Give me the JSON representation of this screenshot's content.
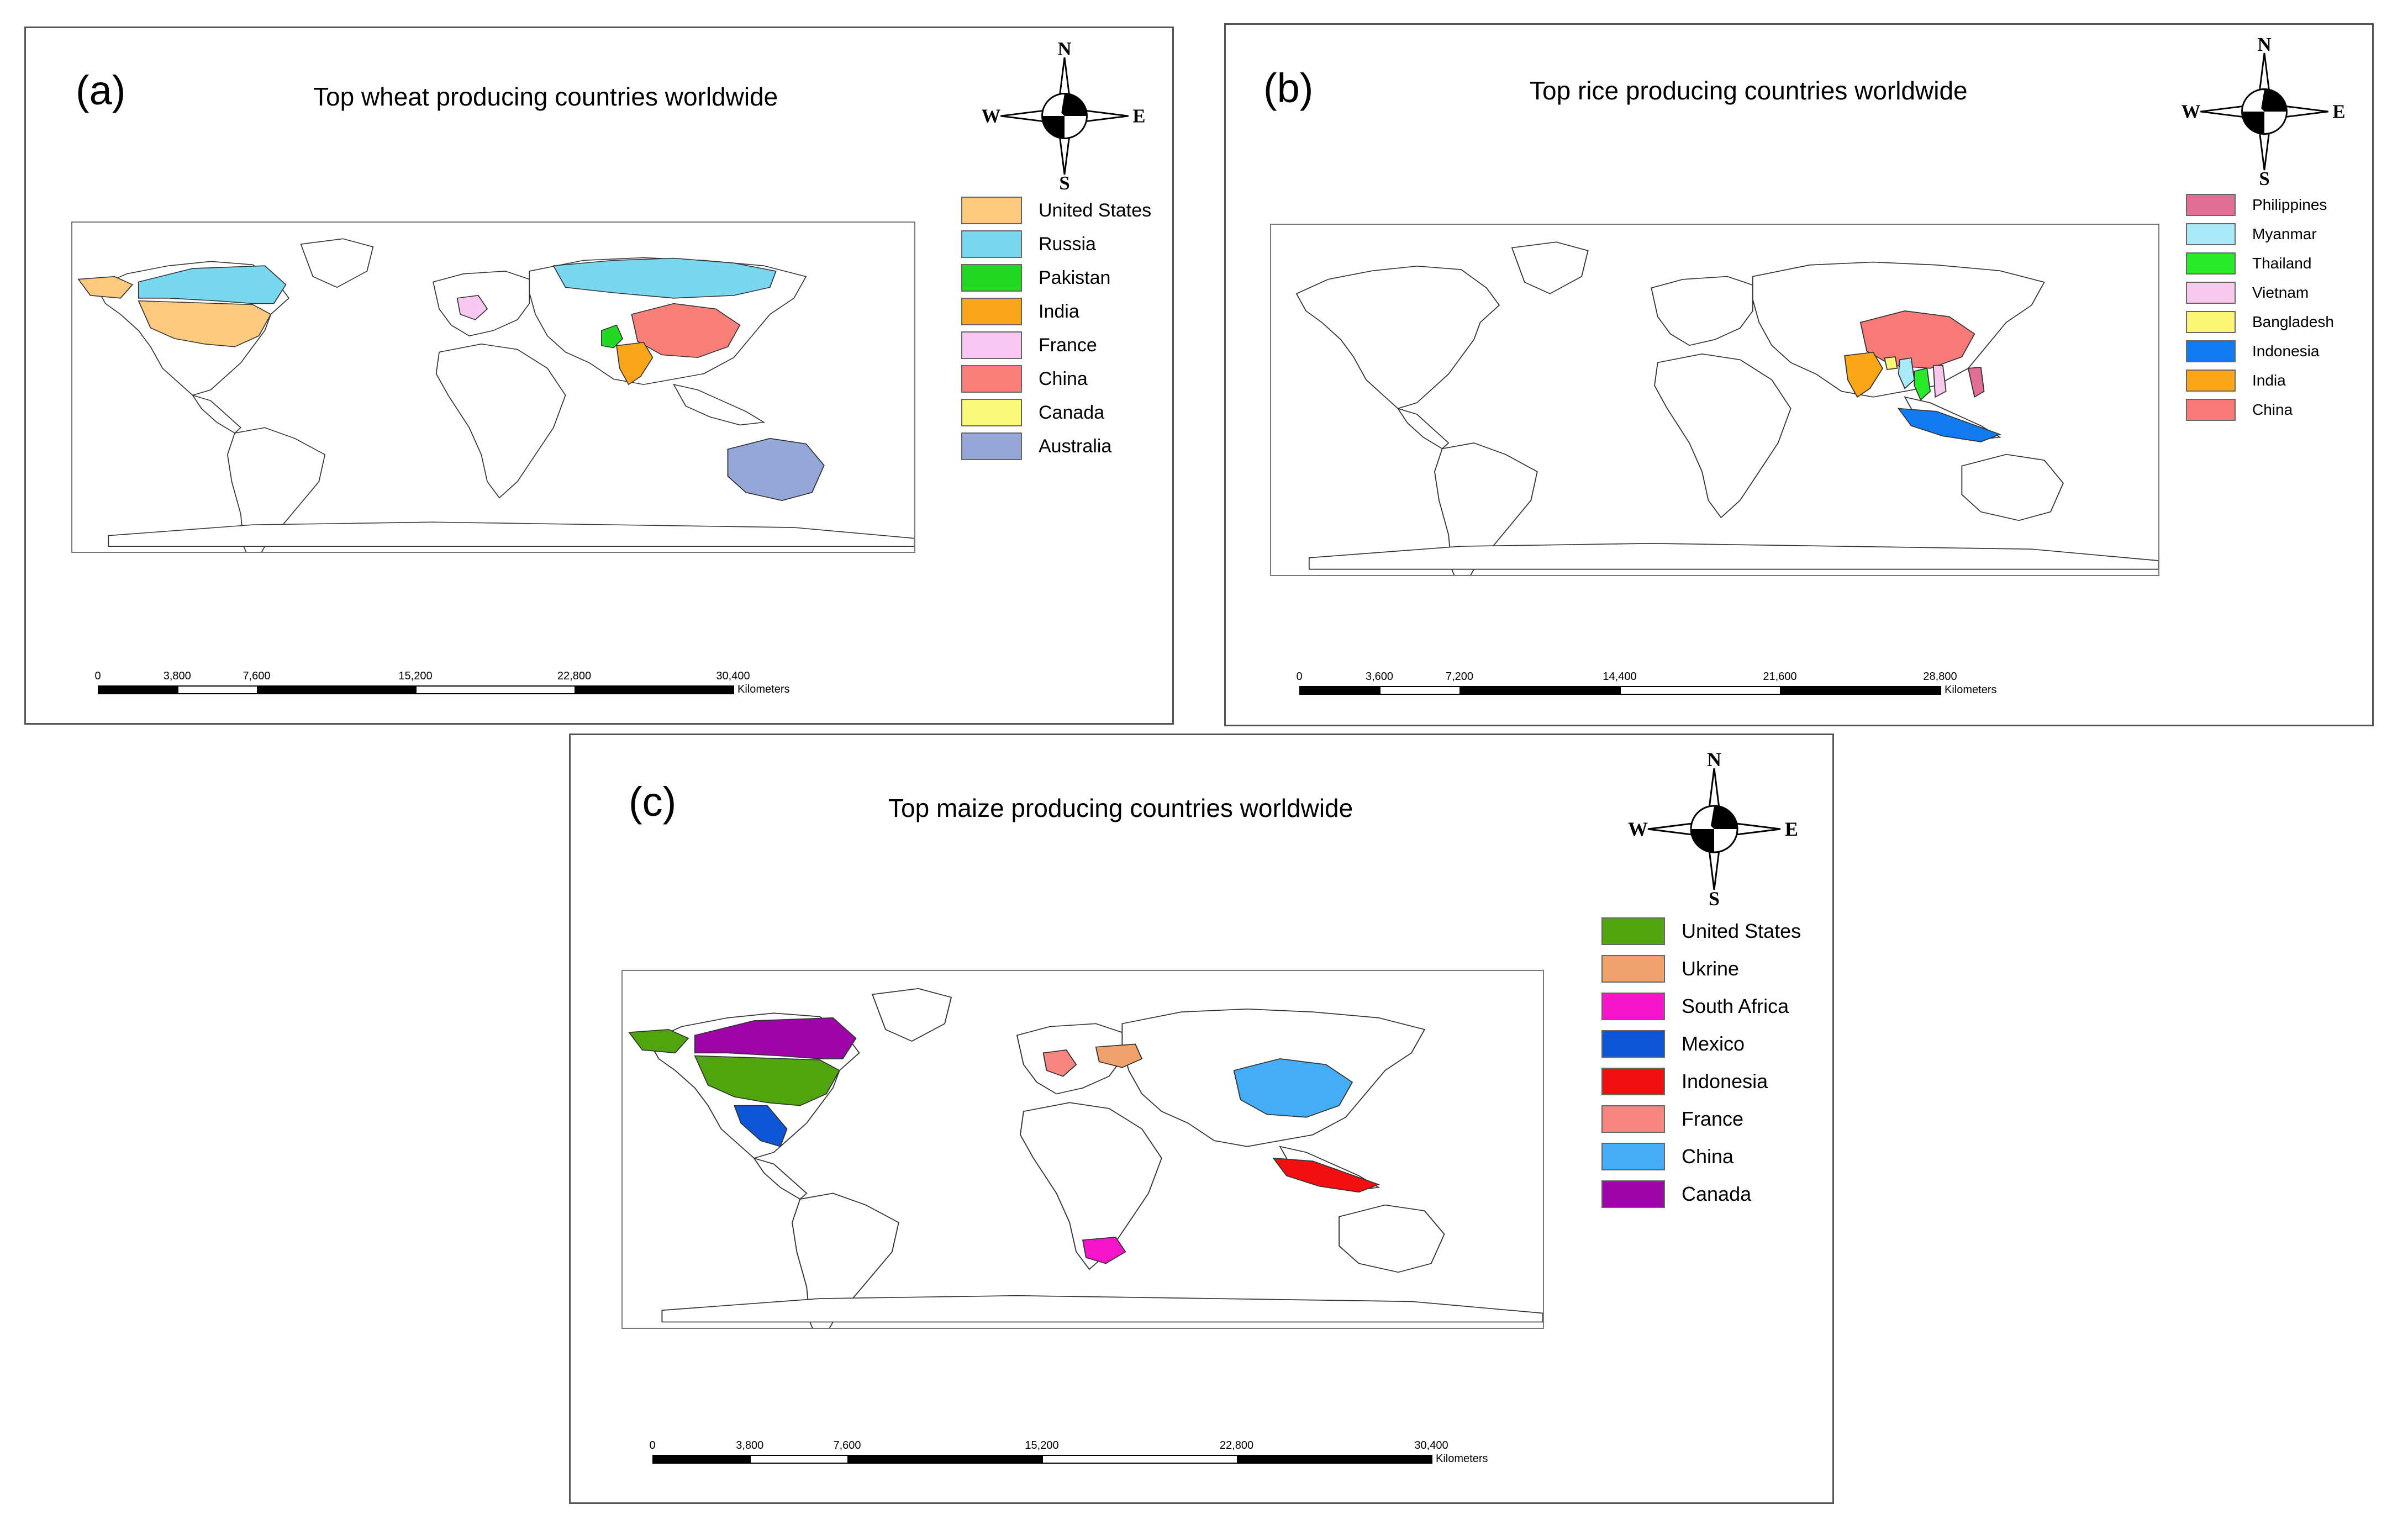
{
  "colors": {
    "land_fill": "#ffffff",
    "land_stroke": "#333333"
  },
  "panels": [
    {
      "id": "a",
      "letter": "(a)",
      "title": "Top wheat producing countries worldwide",
      "compass": {
        "n": "N",
        "s": "S",
        "e": "E",
        "w": "W"
      },
      "legend": [
        {
          "label": "United States",
          "color": "#fdc97e"
        },
        {
          "label": "Russia",
          "color": "#79d8f0"
        },
        {
          "label": "Pakistan",
          "color": "#22d822"
        },
        {
          "label": "India",
          "color": "#fba61a"
        },
        {
          "label": "France",
          "color": "#f8c7f2"
        },
        {
          "label": "China",
          "color": "#f88078"
        },
        {
          "label": "Canada",
          "color": "#fbf77a"
        },
        {
          "label": "Australia",
          "color": "#94a7d8"
        }
      ],
      "scale": {
        "ticks": [
          "0",
          "3,800",
          "7,600",
          "15,200",
          "22,800",
          "30,400"
        ],
        "units": "Kilometers"
      }
    },
    {
      "id": "b",
      "letter": "(b)",
      "title": "Top rice producing countries worldwide",
      "compass": {
        "n": "N",
        "s": "S",
        "e": "E",
        "w": "W"
      },
      "legend": [
        {
          "label": "Philippines",
          "color": "#e26d95"
        },
        {
          "label": "Myanmar",
          "color": "#aaeaf8"
        },
        {
          "label": "Thailand",
          "color": "#2ae82a"
        },
        {
          "label": "Vietnam",
          "color": "#f8c8ee"
        },
        {
          "label": "Bangladesh",
          "color": "#fbf575"
        },
        {
          "label": "Indonesia",
          "color": "#137bf0"
        },
        {
          "label": "India",
          "color": "#fba718"
        },
        {
          "label": "China",
          "color": "#f87a78"
        }
      ],
      "scale": {
        "ticks": [
          "0",
          "3,600",
          "7,200",
          "14,400",
          "21,600",
          "28,800"
        ],
        "units": "Kilometers"
      }
    },
    {
      "id": "c",
      "letter": "(c)",
      "title": "Top maize producing countries worldwide",
      "compass": {
        "n": "N",
        "s": "S",
        "e": "E",
        "w": "W"
      },
      "legend": [
        {
          "label": "United States",
          "color": "#50a50f"
        },
        {
          "label": "Ukrine",
          "color": "#f1a16b"
        },
        {
          "label": "South Africa",
          "color": "#f614ca"
        },
        {
          "label": "Mexico",
          "color": "#0d56d8"
        },
        {
          "label": "Indonesia",
          "color": "#f20f0f"
        },
        {
          "label": "France",
          "color": "#f8857f"
        },
        {
          "label": "China",
          "color": "#45adf8"
        },
        {
          "label": "Canada",
          "color": "#9d05a8"
        }
      ],
      "scale": {
        "ticks": [
          "0",
          "3,800",
          "7,600",
          "15,200",
          "22,800",
          "30,400"
        ],
        "units": "Kilometers"
      }
    }
  ]
}
